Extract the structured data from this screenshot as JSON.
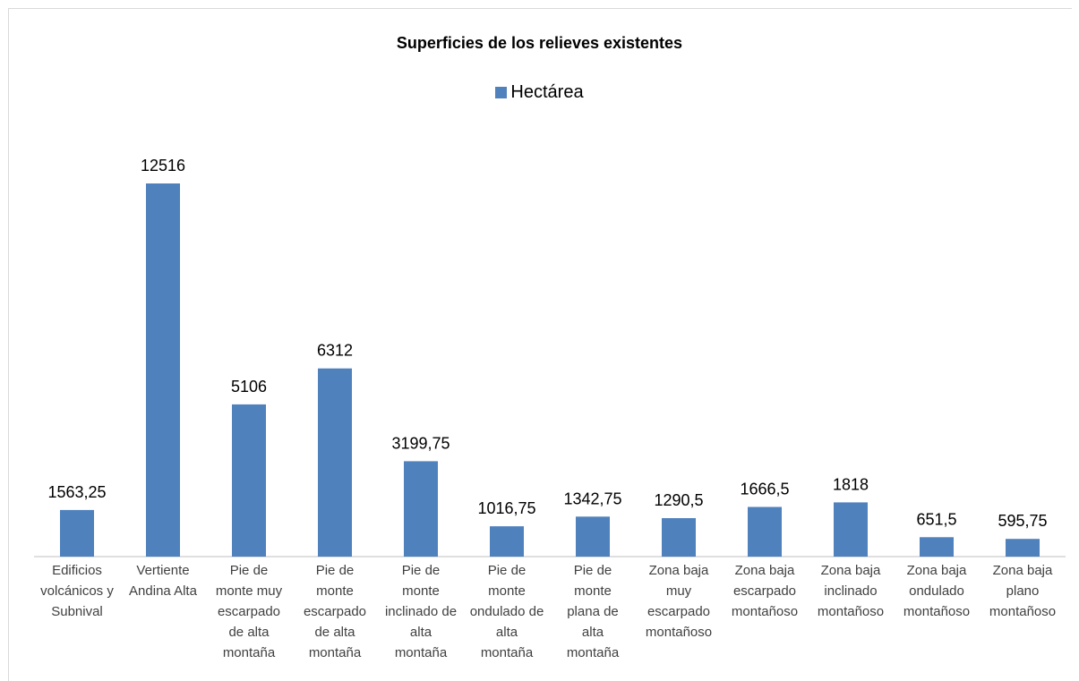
{
  "chart_data": {
    "type": "bar",
    "title": "Superficies de los relieves existentes",
    "xlabel": "",
    "ylabel": "",
    "ylim": [
      0,
      12516
    ],
    "grid": false,
    "legend_position": "top",
    "colors": {
      "bar": "#4f81bd",
      "axis": "#bfbfbf"
    },
    "categories": [
      "Edificios volcánicos y Subnival",
      "Vertiente Andina Alta",
      "Pie de monte muy escarpado de alta montaña",
      "Pie de monte escarpado de alta montaña",
      "Pie de monte inclinado de alta montaña",
      "Pie de monte ondulado de alta montaña",
      "Pie de monte plana de alta montaña",
      "Zona baja muy escarpado montañoso",
      "Zona baja escarpado montañoso",
      "Zona baja inclinado montañoso",
      "Zona baja ondulado montañoso",
      "Zona baja plano montañoso"
    ],
    "category_lines": [
      [
        "Edificios",
        "volcánicos y",
        "Subnival"
      ],
      [
        "Vertiente",
        "Andina Alta"
      ],
      [
        "Pie de",
        "monte muy",
        "escarpado",
        "de alta",
        "montaña"
      ],
      [
        "Pie de",
        "monte",
        "escarpado",
        "de alta",
        "montaña"
      ],
      [
        "Pie de",
        "monte",
        "inclinado de",
        "alta",
        "montaña"
      ],
      [
        "Pie de",
        "monte",
        "ondulado de",
        "alta",
        "montaña"
      ],
      [
        "Pie de",
        "monte",
        "plana de",
        "alta",
        "montaña"
      ],
      [
        "Zona baja",
        "muy",
        "escarpado",
        "montañoso"
      ],
      [
        "Zona baja",
        "escarpado",
        "montañoso"
      ],
      [
        "Zona baja",
        "inclinado",
        "montañoso"
      ],
      [
        "Zona baja",
        "ondulado",
        "montañoso"
      ],
      [
        "Zona baja",
        "plano",
        "montañoso"
      ]
    ],
    "series": [
      {
        "name": "Hectárea",
        "values": [
          1563.25,
          12516,
          5106,
          6312,
          3199.75,
          1016.75,
          1342.75,
          1290.5,
          1666.5,
          1818,
          651.5,
          595.75
        ],
        "labels": [
          "1563,25",
          "12516",
          "5106",
          "6312",
          "3199,75",
          "1016,75",
          "1342,75",
          "1290,5",
          "1666,5",
          "1818",
          "651,5",
          "595,75"
        ]
      }
    ]
  }
}
